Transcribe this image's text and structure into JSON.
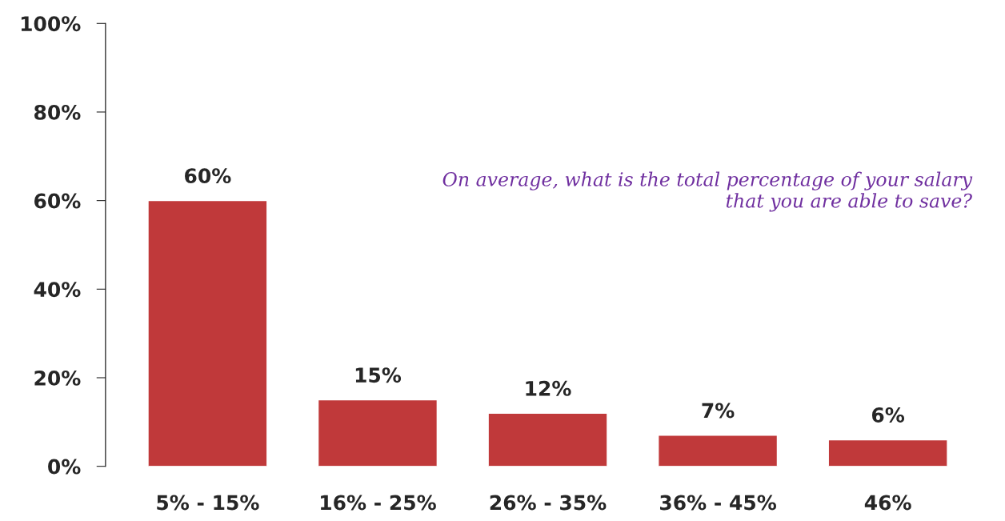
{
  "chart_data": {
    "type": "bar",
    "categories": [
      "5% - 15%",
      "16% - 25%",
      "26% - 35%",
      "36% - 45%",
      "46%"
    ],
    "values": [
      60,
      15,
      12,
      7,
      6
    ],
    "value_labels": [
      "60%",
      "15%",
      "12%",
      "7%",
      "6%"
    ],
    "color": "#c0393a",
    "ylim": [
      0,
      100
    ],
    "yticks": [
      {
        "value": 0,
        "label": "0%"
      },
      {
        "value": 20,
        "label": "20%"
      },
      {
        "value": 40,
        "label": "40%"
      },
      {
        "value": 60,
        "label": "60%"
      },
      {
        "value": 80,
        "label": "80%"
      },
      {
        "value": 100,
        "label": "100%"
      }
    ],
    "annotations": [
      "On average, what is the total percentage of your salary\nthat you are able to save?"
    ],
    "grid": false,
    "legend": false
  }
}
